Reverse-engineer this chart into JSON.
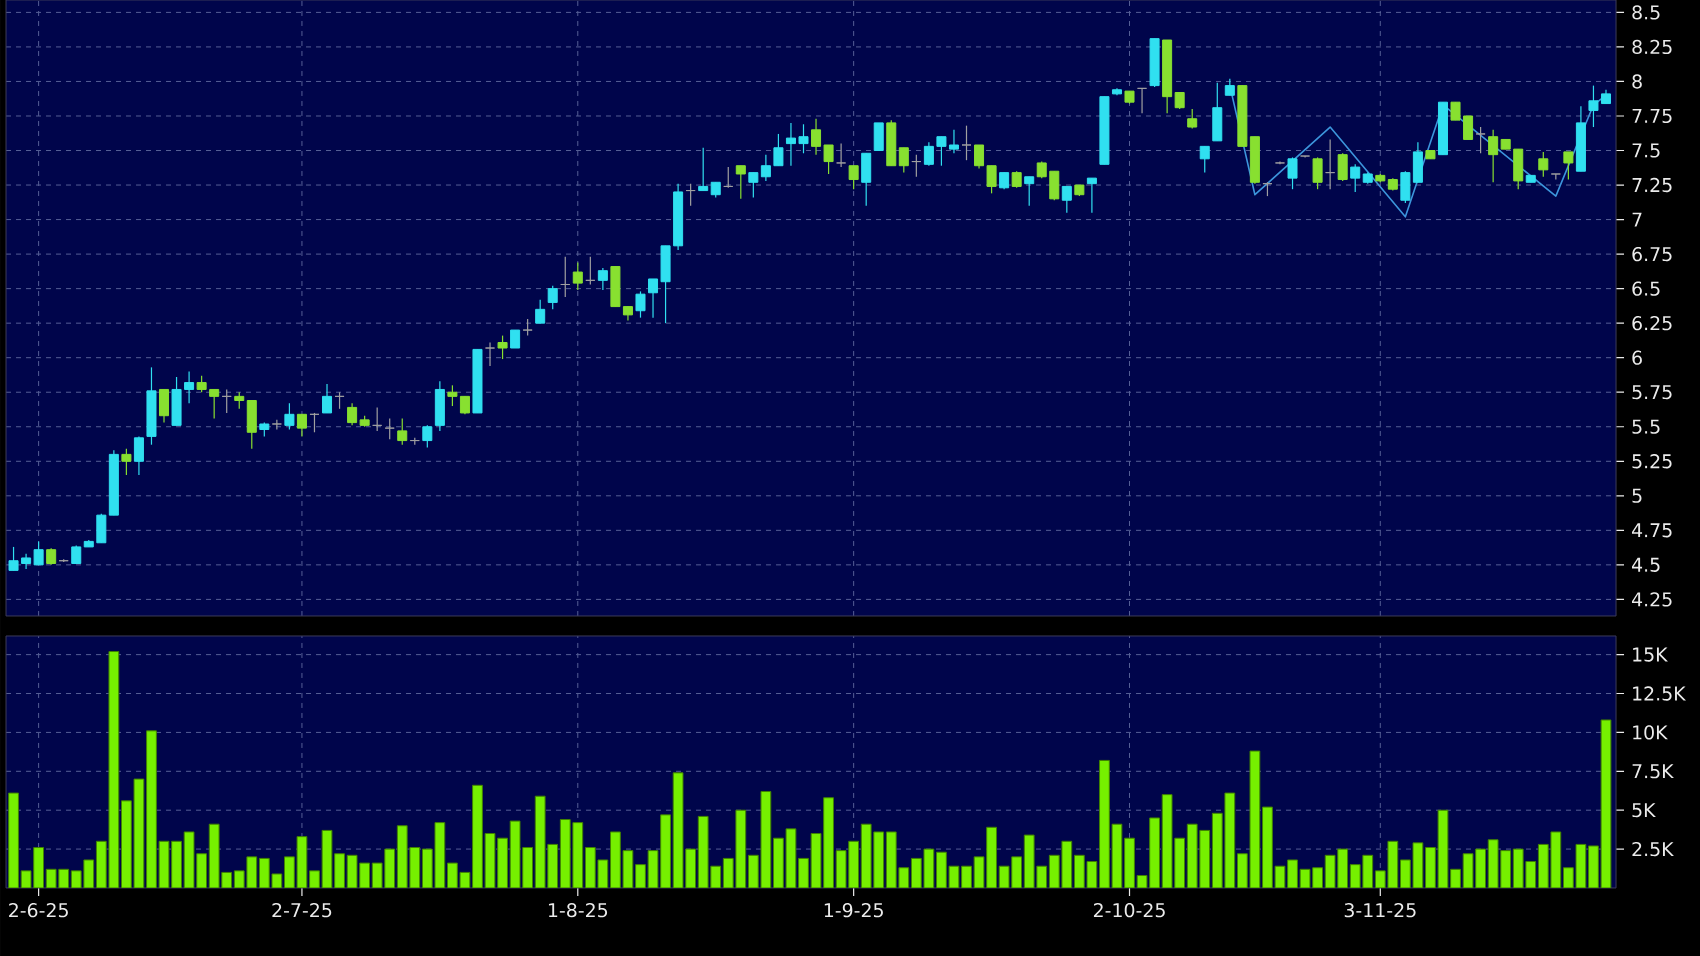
{
  "chart_data": [
    {
      "type": "candlestick",
      "categories": [
        null,
        null,
        null,
        null,
        null,
        null,
        null,
        null,
        null,
        null,
        null,
        null,
        null,
        null,
        null,
        null,
        null,
        null,
        null,
        null,
        null,
        null,
        null,
        null,
        null,
        null,
        null,
        null,
        null,
        null,
        null,
        null,
        null,
        null,
        null,
        null,
        null,
        null,
        null,
        null,
        null,
        null,
        null,
        null,
        null,
        null,
        null,
        null,
        null,
        null,
        null,
        null,
        null,
        null,
        null,
        null,
        null,
        null,
        null,
        null,
        null,
        null,
        null,
        null,
        null,
        null,
        null,
        null,
        null,
        null,
        null,
        null,
        null,
        null,
        null,
        null,
        null,
        null,
        null,
        null,
        null,
        null,
        null,
        null,
        null,
        null,
        null,
        null,
        null,
        null,
        null,
        null,
        null,
        null,
        null,
        null,
        null,
        null,
        null,
        null,
        null,
        null,
        null,
        null,
        null,
        null,
        null,
        null,
        null,
        null,
        null,
        null,
        null,
        null,
        null,
        null,
        null,
        null,
        null,
        null,
        null,
        null,
        null,
        null,
        null,
        null,
        null,
        null
      ],
      "ohlc": [
        [
          4.46,
          4.63,
          4.46,
          4.53
        ],
        [
          4.51,
          4.58,
          4.47,
          4.55
        ],
        [
          4.5,
          4.67,
          4.5,
          4.61
        ],
        [
          4.61,
          4.62,
          4.5,
          4.51
        ],
        [
          4.53,
          4.54,
          4.52,
          4.53
        ],
        [
          4.51,
          4.64,
          4.51,
          4.63
        ],
        [
          4.63,
          4.68,
          4.63,
          4.67
        ],
        [
          4.66,
          4.87,
          4.66,
          4.86
        ],
        [
          4.86,
          5.33,
          4.86,
          5.3
        ],
        [
          5.3,
          5.34,
          5.15,
          5.25
        ],
        [
          5.25,
          5.43,
          5.15,
          5.42
        ],
        [
          5.43,
          5.93,
          5.37,
          5.76
        ],
        [
          5.77,
          5.77,
          5.53,
          5.58
        ],
        [
          5.51,
          5.86,
          5.51,
          5.77
        ],
        [
          5.77,
          5.9,
          5.67,
          5.82
        ],
        [
          5.82,
          5.87,
          5.75,
          5.77
        ],
        [
          5.77,
          5.77,
          5.56,
          5.72
        ],
        [
          5.72,
          5.77,
          5.6,
          5.72
        ],
        [
          5.72,
          5.75,
          5.63,
          5.69
        ],
        [
          5.69,
          5.69,
          5.34,
          5.46
        ],
        [
          5.48,
          5.53,
          5.43,
          5.52
        ],
        [
          5.52,
          5.55,
          5.48,
          5.52
        ],
        [
          5.51,
          5.67,
          5.48,
          5.59
        ],
        [
          5.59,
          5.59,
          5.43,
          5.49
        ],
        [
          5.59,
          5.6,
          5.46,
          5.59
        ],
        [
          5.6,
          5.81,
          5.6,
          5.72
        ],
        [
          5.72,
          5.75,
          5.63,
          5.72
        ],
        [
          5.64,
          5.67,
          5.51,
          5.53
        ],
        [
          5.55,
          5.58,
          5.5,
          5.51
        ],
        [
          5.51,
          5.64,
          5.47,
          5.51
        ],
        [
          5.49,
          5.56,
          5.41,
          5.49
        ],
        [
          5.47,
          5.56,
          5.37,
          5.4
        ],
        [
          5.4,
          5.42,
          5.37,
          5.4
        ],
        [
          5.4,
          5.51,
          5.35,
          5.5
        ],
        [
          5.51,
          5.83,
          5.47,
          5.77
        ],
        [
          5.75,
          5.8,
          5.65,
          5.72
        ],
        [
          5.72,
          5.72,
          5.59,
          5.6
        ],
        [
          5.6,
          6.06,
          5.6,
          6.06
        ],
        [
          6.07,
          6.11,
          5.94,
          6.07
        ],
        [
          6.11,
          6.16,
          5.99,
          6.07
        ],
        [
          6.07,
          6.2,
          6.07,
          6.2
        ],
        [
          6.2,
          6.28,
          6.16,
          6.2
        ],
        [
          6.25,
          6.42,
          6.25,
          6.35
        ],
        [
          6.4,
          6.52,
          6.35,
          6.5
        ],
        [
          6.53,
          6.73,
          6.44,
          6.53
        ],
        [
          6.62,
          6.69,
          6.49,
          6.54
        ],
        [
          6.56,
          6.73,
          6.53,
          6.56
        ],
        [
          6.56,
          6.65,
          6.49,
          6.63
        ],
        [
          6.66,
          6.66,
          6.37,
          6.37
        ],
        [
          6.37,
          6.37,
          6.27,
          6.31
        ],
        [
          6.34,
          6.48,
          6.29,
          6.46
        ],
        [
          6.47,
          6.57,
          6.29,
          6.57
        ],
        [
          6.55,
          6.81,
          6.25,
          6.81
        ],
        [
          6.81,
          7.26,
          6.78,
          7.2
        ],
        [
          7.21,
          7.26,
          7.1,
          7.21
        ],
        [
          7.21,
          7.52,
          7.21,
          7.24
        ],
        [
          7.18,
          7.27,
          7.16,
          7.27
        ],
        [
          7.24,
          7.38,
          7.23,
          7.24
        ],
        [
          7.39,
          7.39,
          7.15,
          7.33
        ],
        [
          7.27,
          7.34,
          7.16,
          7.34
        ],
        [
          7.31,
          7.47,
          7.28,
          7.39
        ],
        [
          7.39,
          7.62,
          7.39,
          7.52
        ],
        [
          7.55,
          7.7,
          7.39,
          7.59
        ],
        [
          7.55,
          7.69,
          7.48,
          7.6
        ],
        [
          7.65,
          7.73,
          7.47,
          7.53
        ],
        [
          7.54,
          7.54,
          7.33,
          7.42
        ],
        [
          7.41,
          7.55,
          7.38,
          7.41
        ],
        [
          7.39,
          7.39,
          7.22,
          7.29
        ],
        [
          7.27,
          7.48,
          7.1,
          7.48
        ],
        [
          7.5,
          7.7,
          7.5,
          7.7
        ],
        [
          7.7,
          7.72,
          7.39,
          7.39
        ],
        [
          7.52,
          7.52,
          7.34,
          7.39
        ],
        [
          7.42,
          7.47,
          7.31,
          7.42
        ],
        [
          7.4,
          7.56,
          7.39,
          7.53
        ],
        [
          7.53,
          7.6,
          7.39,
          7.6
        ],
        [
          7.51,
          7.65,
          7.48,
          7.54
        ],
        [
          7.54,
          7.68,
          7.43,
          7.54
        ],
        [
          7.54,
          7.54,
          7.37,
          7.39
        ],
        [
          7.39,
          7.39,
          7.19,
          7.24
        ],
        [
          7.23,
          7.34,
          7.22,
          7.34
        ],
        [
          7.34,
          7.35,
          7.23,
          7.24
        ],
        [
          7.26,
          7.31,
          7.1,
          7.31
        ],
        [
          7.41,
          7.42,
          7.3,
          7.31
        ],
        [
          7.35,
          7.35,
          7.14,
          7.15
        ],
        [
          7.14,
          7.24,
          7.05,
          7.24
        ],
        [
          7.25,
          7.25,
          7.17,
          7.18
        ],
        [
          7.26,
          7.3,
          7.05,
          7.3
        ],
        [
          7.4,
          7.89,
          7.4,
          7.89
        ],
        [
          7.91,
          7.95,
          7.9,
          7.94
        ],
        [
          7.93,
          7.93,
          7.84,
          7.85
        ],
        [
          7.95,
          7.95,
          7.77,
          7.95
        ],
        [
          7.97,
          8.31,
          7.96,
          8.31
        ],
        [
          8.3,
          8.3,
          7.77,
          7.89
        ],
        [
          7.92,
          7.92,
          7.8,
          7.81
        ],
        [
          7.73,
          7.8,
          7.66,
          7.67
        ],
        [
          7.44,
          7.53,
          7.34,
          7.53
        ],
        [
          7.57,
          7.99,
          7.57,
          7.81
        ],
        [
          7.9,
          8.02,
          7.9,
          7.97
        ],
        [
          7.97,
          7.97,
          7.53,
          7.53
        ],
        [
          7.6,
          7.6,
          7.26,
          7.27
        ],
        [
          7.26,
          7.27,
          7.17,
          7.26
        ],
        [
          7.41,
          7.42,
          7.4,
          7.41
        ],
        [
          7.3,
          7.45,
          7.22,
          7.44
        ],
        [
          7.46,
          7.46,
          7.45,
          7.46
        ],
        [
          7.44,
          7.45,
          7.22,
          7.27
        ],
        [
          7.34,
          7.58,
          7.22,
          7.34
        ],
        [
          7.47,
          7.48,
          7.28,
          7.29
        ],
        [
          7.3,
          7.4,
          7.2,
          7.38
        ],
        [
          7.27,
          7.34,
          7.26,
          7.33
        ],
        [
          7.32,
          7.33,
          7.27,
          7.28
        ],
        [
          7.29,
          7.3,
          7.21,
          7.22
        ],
        [
          7.14,
          7.35,
          7.12,
          7.34
        ],
        [
          7.27,
          7.56,
          7.27,
          7.49
        ],
        [
          7.5,
          7.5,
          7.44,
          7.44
        ],
        [
          7.47,
          7.85,
          7.47,
          7.85
        ],
        [
          7.85,
          7.85,
          7.72,
          7.72
        ],
        [
          7.75,
          7.75,
          7.58,
          7.58
        ],
        [
          7.62,
          7.67,
          7.48,
          7.62
        ],
        [
          7.6,
          7.65,
          7.27,
          7.47
        ],
        [
          7.58,
          7.58,
          7.51,
          7.51
        ],
        [
          7.51,
          7.51,
          7.22,
          7.28
        ],
        [
          7.27,
          7.32,
          7.27,
          7.32
        ],
        [
          7.44,
          7.49,
          7.31,
          7.36
        ],
        [
          7.33,
          7.33,
          7.29,
          7.33
        ],
        [
          7.49,
          7.49,
          7.29,
          7.41
        ],
        [
          7.35,
          7.82,
          7.35,
          7.7
        ],
        [
          7.79,
          7.97,
          7.67,
          7.86
        ],
        [
          7.84,
          7.94,
          7.84,
          7.91
        ]
      ],
      "colors": [
        "#30e0f0",
        "#30e0f0",
        "#30e0f0",
        "#88e030",
        "#a0a0a0",
        "#30e0f0",
        "#30e0f0",
        "#30e0f0",
        "#30e0f0",
        "#88e030",
        "#30e0f0",
        "#30e0f0",
        "#88e030",
        "#30e0f0",
        "#30e0f0",
        "#88e030",
        "#88e030",
        "#a0a0a0",
        "#88e030",
        "#88e030",
        "#30e0f0",
        "#a0a0a0",
        "#30e0f0",
        "#88e030",
        "#a0a0a0",
        "#30e0f0",
        "#a0a0a0",
        "#88e030",
        "#88e030",
        "#a0a0a0",
        "#a0a0a0",
        "#88e030",
        "#a0a0a0",
        "#30e0f0",
        "#30e0f0",
        "#88e030",
        "#88e030",
        "#30e0f0",
        "#a0a0a0",
        "#88e030",
        "#30e0f0",
        "#a0a0a0",
        "#30e0f0",
        "#30e0f0",
        "#a0a0a0",
        "#88e030",
        "#a0a0a0",
        "#30e0f0",
        "#88e030",
        "#88e030",
        "#30e0f0",
        "#30e0f0",
        "#30e0f0",
        "#30e0f0",
        "#a0a0a0",
        "#30e0f0",
        "#30e0f0",
        "#a0a0a0",
        "#88e030",
        "#30e0f0",
        "#30e0f0",
        "#30e0f0",
        "#30e0f0",
        "#30e0f0",
        "#88e030",
        "#88e030",
        "#a0a0a0",
        "#88e030",
        "#30e0f0",
        "#30e0f0",
        "#88e030",
        "#88e030",
        "#a0a0a0",
        "#30e0f0",
        "#30e0f0",
        "#30e0f0",
        "#a0a0a0",
        "#88e030",
        "#88e030",
        "#30e0f0",
        "#88e030",
        "#30e0f0",
        "#88e030",
        "#88e030",
        "#30e0f0",
        "#88e030",
        "#30e0f0",
        "#30e0f0",
        "#30e0f0",
        "#88e030",
        "#a0a0a0",
        "#30e0f0",
        "#88e030",
        "#88e030",
        "#88e030",
        "#30e0f0",
        "#30e0f0",
        "#30e0f0",
        "#88e030",
        "#88e030",
        "#a0a0a0",
        "#a0a0a0",
        "#30e0f0",
        "#a0a0a0",
        "#88e030",
        "#a0a0a0",
        "#88e030",
        "#30e0f0",
        "#30e0f0",
        "#88e030",
        "#88e030",
        "#30e0f0",
        "#30e0f0",
        "#88e030",
        "#30e0f0",
        "#88e030",
        "#88e030",
        "#a0a0a0",
        "#88e030",
        "#88e030",
        "#88e030",
        "#30e0f0",
        "#88e030",
        "#a0a0a0",
        "#88e030",
        "#30e0f0",
        "#30e0f0",
        "#30e0f0"
      ],
      "series": [
        {
          "type": "line",
          "color": "#3c96dc",
          "values": [
            null,
            null,
            null,
            null,
            null,
            null,
            null,
            null,
            null,
            null,
            null,
            null,
            null,
            null,
            null,
            null,
            null,
            null,
            null,
            null,
            null,
            null,
            null,
            null,
            null,
            null,
            null,
            null,
            null,
            null,
            null,
            null,
            null,
            null,
            null,
            null,
            null,
            null,
            null,
            null,
            null,
            null,
            null,
            null,
            null,
            null,
            null,
            null,
            null,
            null,
            null,
            null,
            null,
            null,
            null,
            null,
            null,
            null,
            null,
            null,
            null,
            null,
            null,
            null,
            null,
            null,
            null,
            null,
            null,
            null,
            null,
            null,
            null,
            null,
            null,
            null,
            null,
            null,
            null,
            null,
            null,
            null,
            null,
            null,
            null,
            null,
            null,
            null,
            null,
            null,
            null,
            null,
            null,
            null,
            null,
            null,
            null,
            7.97,
            null,
            7.18,
            null,
            null,
            null,
            null,
            null,
            7.67,
            null,
            null,
            null,
            null,
            null,
            7.02,
            null,
            null,
            7.83,
            null,
            null,
            null,
            null,
            null,
            null,
            null,
            null,
            7.17,
            null,
            null,
            7.83,
            7.9
          ]
        }
      ],
      "ylim": [
        4.13,
        8.59
      ],
      "yticks": [
        4.25,
        4.5,
        4.75,
        5,
        5.25,
        5.5,
        5.75,
        6,
        6.25,
        6.5,
        6.75,
        7,
        7.25,
        7.5,
        7.75,
        8,
        8.25,
        8.5
      ],
      "grid": true,
      "tick_labels": "y"
    },
    {
      "type": "bar",
      "categories": [
        null,
        null,
        "2-6-25",
        null,
        null,
        null,
        null,
        null,
        null,
        null,
        null,
        null,
        null,
        null,
        null,
        null,
        null,
        null,
        null,
        null,
        null,
        null,
        null,
        "2-7-25",
        null,
        null,
        null,
        null,
        null,
        null,
        null,
        null,
        null,
        null,
        null,
        null,
        null,
        null,
        null,
        null,
        null,
        null,
        null,
        null,
        null,
        "1-8-25",
        null,
        null,
        null,
        null,
        null,
        null,
        null,
        null,
        null,
        null,
        null,
        null,
        null,
        null,
        null,
        null,
        null,
        null,
        null,
        null,
        null,
        "1-9-25",
        null,
        null,
        null,
        null,
        null,
        null,
        null,
        null,
        null,
        null,
        null,
        null,
        null,
        null,
        null,
        null,
        null,
        null,
        null,
        null,
        null,
        "2-10-25",
        null,
        null,
        null,
        null,
        null,
        null,
        null,
        null,
        null,
        null,
        null,
        null,
        null,
        null,
        null,
        null,
        null,
        null,
        null,
        "3-11-25",
        null,
        null,
        null,
        null,
        null,
        null,
        null,
        null,
        null,
        null,
        null,
        null,
        null,
        null,
        null,
        null,
        null,
        null
      ],
      "values": [
        6100,
        1100,
        2600,
        1200,
        1200,
        1100,
        1800,
        3000,
        15200,
        5600,
        7000,
        10100,
        3000,
        3000,
        3600,
        2200,
        4100,
        1000,
        1100,
        2000,
        1900,
        900,
        2000,
        3300,
        1100,
        3700,
        2200,
        2100,
        1600,
        1600,
        2500,
        4000,
        2600,
        2500,
        4200,
        1600,
        1000,
        6600,
        3500,
        3200,
        4300,
        2600,
        5900,
        2800,
        4400,
        4200,
        2600,
        1800,
        3600,
        2400,
        1500,
        2400,
        4700,
        7400,
        2500,
        4600,
        1400,
        1900,
        5000,
        2100,
        6200,
        3200,
        3800,
        1900,
        3500,
        5800,
        2400,
        3000,
        4100,
        3600,
        3600,
        1300,
        1900,
        2500,
        2300,
        1400,
        1400,
        2000,
        3900,
        1400,
        2000,
        3400,
        1400,
        2100,
        3000,
        2100,
        1700,
        8200,
        4100,
        3200,
        800,
        4500,
        6000,
        3200,
        4100,
        3700,
        4800,
        6100,
        2200,
        8800,
        5200,
        1400,
        1800,
        1200,
        1300,
        2100,
        2500,
        1500,
        2100,
        1100,
        3000,
        1800,
        2900,
        2600,
        5000,
        1200,
        2200,
        2500,
        3100,
        2400,
        2500,
        1700,
        2800,
        3600,
        1300,
        2800,
        2700,
        10800
      ],
      "color": "#76f000",
      "ylim": [
        0,
        16200
      ],
      "yticks": [
        {
          "value": 2500,
          "label": "2.5K"
        },
        {
          "value": 5000,
          "label": "5K"
        },
        {
          "value": 7500,
          "label": "7.5K"
        },
        {
          "value": 10000,
          "label": "10K"
        },
        {
          "value": 12500,
          "label": "12.5K"
        },
        {
          "value": 15000,
          "label": "15K"
        }
      ],
      "grid": true
    }
  ]
}
